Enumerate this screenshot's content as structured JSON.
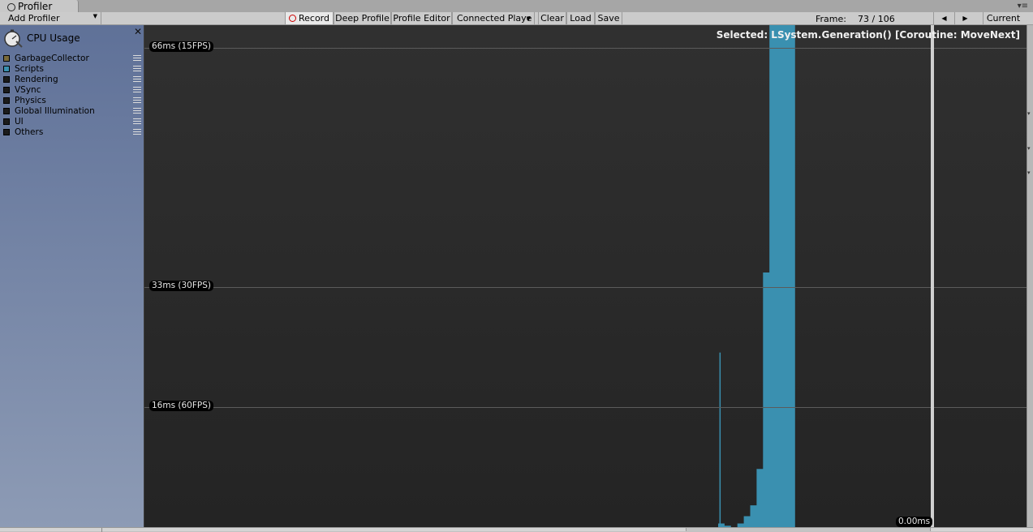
{
  "window": {
    "tab_title": "Profiler"
  },
  "toolbar": {
    "add_profiler": "Add Profiler",
    "record": "Record",
    "deep_profile": "Deep Profile",
    "profile_editor": "Profile Editor",
    "connected_player": "Connected Playe",
    "clear": "Clear",
    "load": "Load",
    "save": "Save",
    "frame_label": "Frame:",
    "frame_value": "73 / 106",
    "current": "Current"
  },
  "sidebar": {
    "title": "CPU Usage",
    "legend": [
      {
        "label": "GarbageCollector",
        "color": "#7a6a3a"
      },
      {
        "label": "Scripts",
        "color": "#3a90b0"
      },
      {
        "label": "Rendering",
        "color": "#1c1c1c"
      },
      {
        "label": "VSync",
        "color": "#1c1c1c"
      },
      {
        "label": "Physics",
        "color": "#1c1c1c"
      },
      {
        "label": "Global Illumination",
        "color": "#1c1c1c"
      },
      {
        "label": "UI",
        "color": "#1c1c1c"
      },
      {
        "label": "Others",
        "color": "#1c1c1c"
      }
    ]
  },
  "graph": {
    "selected": "Selected: LSystem.Generation() [Coroutine: MoveNext]",
    "lines": [
      {
        "label": "66ms (15FPS)",
        "ms": 66
      },
      {
        "label": "33ms (30FPS)",
        "ms": 33
      },
      {
        "label": "16ms (60FPS)",
        "ms": 16
      }
    ],
    "cursor_value": "0.00ms",
    "series_color": "#3a90b0"
  },
  "chart_data": {
    "type": "area",
    "ylabel": "",
    "ylim": [
      0,
      69
    ],
    "frame_range": [
      1,
      106
    ],
    "selected_frame": 73,
    "series": [
      {
        "name": "Scripts",
        "x": [
          60,
          61,
          62,
          63,
          64,
          65,
          66,
          67,
          68,
          69,
          70,
          71,
          72
        ],
        "values": [
          0.5,
          0.2,
          0,
          0.5,
          1.5,
          3,
          8,
          35,
          69,
          69,
          69,
          69,
          0
        ]
      }
    ],
    "spike": {
      "x": 60.2,
      "value": 24
    }
  }
}
